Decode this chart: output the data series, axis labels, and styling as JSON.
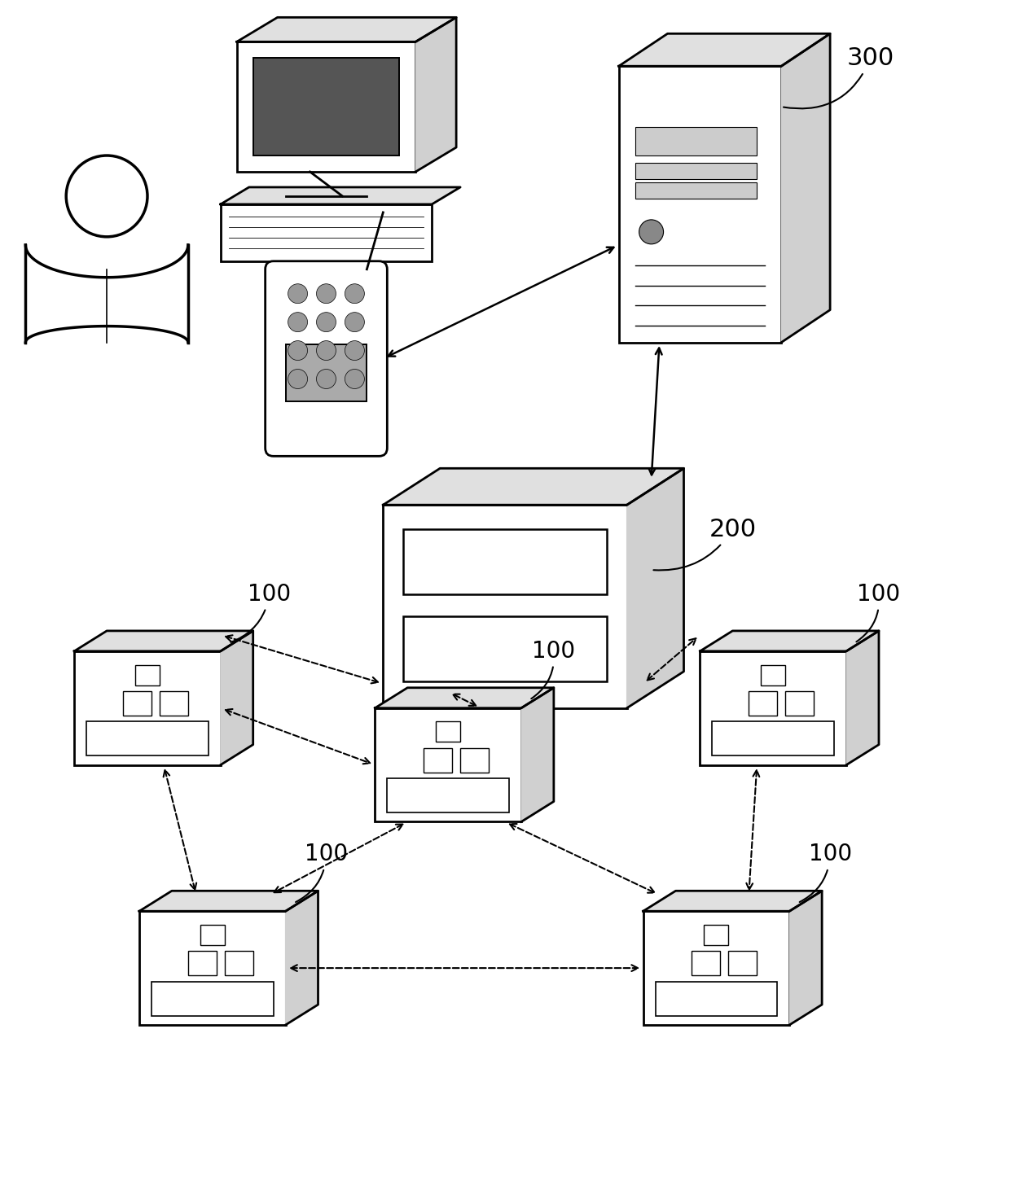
{
  "bg_color": "#ffffff",
  "label_300": "300",
  "label_200": "200",
  "label_100": "100",
  "fig_width": 12.4,
  "fig_height": 14.47,
  "dpi": 100,
  "lw_main": 2.0,
  "lw_thin": 1.2
}
